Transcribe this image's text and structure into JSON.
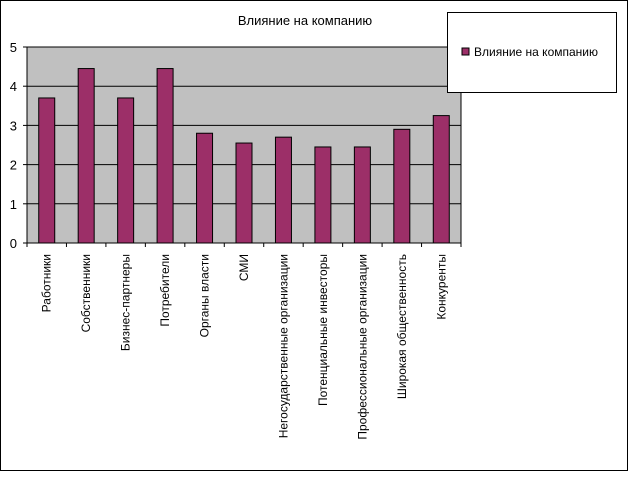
{
  "colors": {
    "bar": "#9C2F68",
    "bar_outline": "#000000",
    "plot_background": "#C0C0C0",
    "gridline": "#000000",
    "page_background": "#FFFFFF"
  },
  "chart_data": {
    "type": "bar",
    "title": "Влияние на компанию",
    "xlabel": "",
    "ylabel": "",
    "ylim": [
      0,
      5
    ],
    "yticks": [
      0,
      1,
      2,
      3,
      4,
      5
    ],
    "grid": true,
    "legend_position": "top-right",
    "categories": [
      "Работники",
      "Собственники",
      "Бизнес-партнеры",
      "Потребители",
      "Органы власти",
      "СМИ",
      "Негосударственные организации",
      "Потенциальные инвесторы",
      "Профессиональные организации",
      "Широкая общественность",
      "Конкуренты"
    ],
    "series": [
      {
        "name": "Влияние на компанию",
        "values": [
          3.7,
          4.45,
          3.7,
          4.45,
          2.8,
          2.55,
          2.7,
          2.45,
          2.45,
          2.9,
          3.25
        ]
      }
    ]
  }
}
